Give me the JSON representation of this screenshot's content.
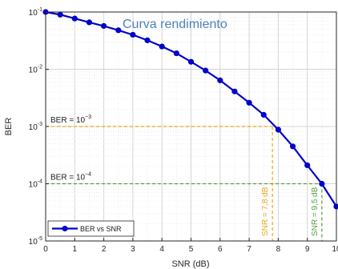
{
  "chart_data": {
    "type": "line",
    "title": "Curva rendimiento",
    "xlabel": "SNR (dB)",
    "ylabel": "BER",
    "x_scale": "linear",
    "y_scale": "log",
    "xlim": [
      0,
      10
    ],
    "ylim": [
      1e-05,
      0.1
    ],
    "x_ticks": [
      "0",
      "1",
      "2",
      "3",
      "4",
      "5",
      "6",
      "7",
      "8",
      "9",
      "10"
    ],
    "y_ticks": [
      {
        "value": 0.1,
        "base": "10",
        "exp": "-1"
      },
      {
        "value": 0.01,
        "base": "10",
        "exp": "-2"
      },
      {
        "value": 0.001,
        "base": "10",
        "exp": "-3"
      },
      {
        "value": 0.0001,
        "base": "10",
        "exp": "-4"
      },
      {
        "value": 1e-05,
        "base": "10",
        "exp": "-5"
      }
    ],
    "grid": true,
    "legend_position": "bottom-left",
    "series": [
      {
        "name": "BER vs SNR",
        "color": "#0000cc",
        "x": [
          0,
          0.5,
          1,
          1.5,
          2,
          2.5,
          3,
          3.5,
          4,
          4.5,
          5,
          5.5,
          6,
          6.5,
          7,
          7.5,
          8,
          8.5,
          9,
          9.5,
          10
        ],
        "y": [
          0.1,
          0.09,
          0.077,
          0.066,
          0.057,
          0.048,
          0.04,
          0.032,
          0.025,
          0.019,
          0.0135,
          0.0095,
          0.0064,
          0.0041,
          0.0026,
          0.0016,
          0.00088,
          0.00045,
          0.00021,
          0.0001,
          4e-05
        ]
      }
    ],
    "annotations": [
      {
        "kind": "horizontal",
        "y": 0.001,
        "x_end": 7.8,
        "label_prefix": "BER = ",
        "label_base": "10",
        "label_exp": "−3",
        "color": "#e6a817"
      },
      {
        "kind": "horizontal",
        "y": 0.0001,
        "x_end": 9.5,
        "label_prefix": "BER = ",
        "label_base": "10",
        "label_exp": "−4",
        "color": "#5a9e3a"
      },
      {
        "kind": "vertical",
        "x": 7.8,
        "y_end": 0.001,
        "label": "SNR = 7,8 dB",
        "color": "#e6a817"
      },
      {
        "kind": "vertical",
        "x": 9.5,
        "y_end": 0.0001,
        "label": "SNR = 9,5 dB",
        "color": "#5a9e3a"
      }
    ]
  }
}
